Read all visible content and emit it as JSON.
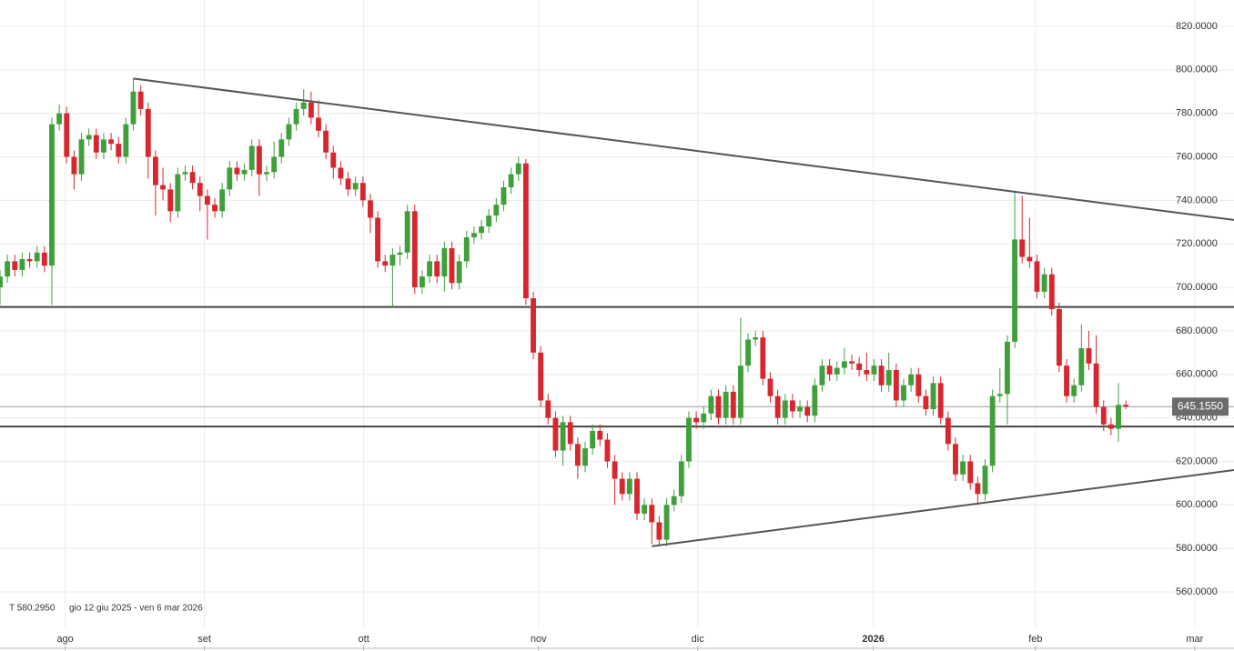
{
  "chart_data": {
    "type": "candlestick",
    "up_color": "#3f9f3a",
    "down_color": "#d7262e",
    "ylim": [
      543.7,
      832.1
    ],
    "yticks": [
      {
        "value": 560,
        "label": "560.0000"
      },
      {
        "value": 580,
        "label": "580.0000"
      },
      {
        "value": 600,
        "label": "600.0000"
      },
      {
        "value": 620,
        "label": "620.0000"
      },
      {
        "value": 640,
        "label": "640.0000"
      },
      {
        "value": 660,
        "label": "660.0000"
      },
      {
        "value": 680,
        "label": "680.0000"
      },
      {
        "value": 700,
        "label": "700.0000"
      },
      {
        "value": 720,
        "label": "720.0000"
      },
      {
        "value": 740,
        "label": "740.0000"
      },
      {
        "value": 760,
        "label": "760.0000"
      },
      {
        "value": 780,
        "label": "780.0000"
      },
      {
        "value": 800,
        "label": "800.0000"
      },
      {
        "value": 820,
        "label": "820.0000"
      }
    ],
    "xlim": [
      0,
      166.6
    ],
    "xticks": [
      {
        "value": 8.8,
        "label": "ago"
      },
      {
        "value": 27.6,
        "label": "set"
      },
      {
        "value": 49.1,
        "label": "ott"
      },
      {
        "value": 72.7,
        "label": "nov"
      },
      {
        "value": 94.2,
        "label": "dic"
      },
      {
        "value": 117.9,
        "label": "2026"
      },
      {
        "value": 139.8,
        "label": "feb"
      },
      {
        "value": 161.3,
        "label": "mar"
      }
    ],
    "grid": true,
    "open": [
      700,
      705,
      712,
      708,
      713,
      712,
      716,
      710,
      775,
      780,
      760,
      752,
      768,
      770,
      762,
      768,
      766,
      760,
      775,
      790,
      782,
      760,
      747,
      745,
      735,
      752,
      753,
      748,
      742,
      738,
      735,
      745,
      755,
      752,
      754,
      765,
      752,
      753,
      760,
      768,
      775,
      782,
      785,
      778,
      772,
      762,
      755,
      750,
      745,
      748,
      740,
      732,
      712,
      710,
      715,
      716,
      735,
      700,
      705,
      712,
      705,
      718,
      702,
      712,
      723,
      725,
      728,
      733,
      738,
      746,
      752,
      757,
      695,
      670,
      648,
      640,
      625,
      638,
      628,
      618,
      626,
      634,
      630,
      620,
      612,
      605,
      612,
      596,
      600,
      592,
      584,
      600,
      604,
      620,
      640,
      638,
      642,
      650,
      640,
      652,
      640,
      664,
      676,
      677,
      658,
      650,
      640,
      648,
      643,
      645,
      641,
      655,
      664,
      660,
      663,
      666,
      665,
      662,
      660,
      664,
      655,
      662,
      648,
      655,
      660,
      650,
      644,
      656,
      640,
      628,
      614,
      620,
      610,
      605,
      618,
      650,
      651,
      675,
      722,
      714,
      712,
      698,
      706,
      690,
      664,
      650,
      655,
      672,
      665,
      645,
      637,
      635,
      646
    ],
    "high": [
      708,
      715,
      715,
      716,
      716,
      719,
      719,
      778,
      784,
      783,
      763,
      771,
      773,
      773,
      771,
      771,
      769,
      778,
      796,
      793,
      785,
      763,
      755,
      748,
      755,
      756,
      756,
      751,
      745,
      741,
      748,
      758,
      758,
      757,
      768,
      768,
      756,
      767,
      771,
      778,
      785,
      791,
      790,
      786,
      775,
      765,
      758,
      753,
      751,
      751,
      743,
      735,
      715,
      718,
      719,
      738,
      738,
      708,
      715,
      715,
      721,
      721,
      715,
      726,
      728,
      731,
      736,
      741,
      749,
      755,
      760,
      759,
      698,
      673,
      651,
      643,
      641,
      641,
      631,
      629,
      637,
      637,
      633,
      623,
      615,
      615,
      615,
      603,
      603,
      595,
      603,
      607,
      623,
      643,
      643,
      645,
      653,
      653,
      655,
      655,
      686,
      679,
      680,
      680,
      661,
      653,
      651,
      651,
      648,
      648,
      658,
      667,
      667,
      666,
      672,
      669,
      668,
      670,
      667,
      667,
      670,
      665,
      658,
      663,
      663,
      653,
      659,
      659,
      643,
      631,
      623,
      623,
      613,
      621,
      653,
      663,
      678,
      744,
      742,
      732,
      715,
      709,
      709,
      693,
      667,
      658,
      683,
      680,
      678,
      648,
      640,
      656,
      648
    ],
    "low": [
      692,
      702,
      705,
      705,
      709,
      709,
      707,
      692,
      772,
      757,
      745,
      749,
      765,
      759,
      759,
      763,
      757,
      757,
      772,
      779,
      750,
      733,
      740,
      730,
      732,
      749,
      745,
      735,
      722,
      732,
      732,
      742,
      749,
      749,
      751,
      742,
      749,
      750,
      757,
      765,
      772,
      779,
      775,
      769,
      759,
      750,
      747,
      742,
      742,
      737,
      725,
      709,
      707,
      691,
      710,
      713,
      697,
      697,
      702,
      702,
      698,
      699,
      699,
      709,
      720,
      722,
      725,
      730,
      735,
      743,
      749,
      692,
      667,
      645,
      637,
      622,
      618,
      625,
      612,
      615,
      623,
      627,
      617,
      600,
      602,
      602,
      593,
      593,
      582,
      581,
      581,
      597,
      601,
      617,
      635,
      635,
      639,
      637,
      637,
      637,
      637,
      661,
      673,
      655,
      647,
      637,
      637,
      640,
      640,
      638,
      638,
      652,
      657,
      657,
      660,
      662,
      659,
      657,
      657,
      652,
      652,
      645,
      645,
      652,
      647,
      641,
      641,
      637,
      625,
      611,
      611,
      607,
      600,
      602,
      615,
      647,
      637,
      672,
      711,
      709,
      695,
      695,
      687,
      661,
      647,
      647,
      652,
      662,
      642,
      634,
      632,
      629,
      644
    ],
    "close": [
      705,
      712,
      708,
      713,
      712,
      716,
      710,
      775,
      780,
      760,
      752,
      768,
      770,
      762,
      768,
      766,
      760,
      775,
      790,
      782,
      760,
      747,
      745,
      735,
      752,
      753,
      748,
      742,
      738,
      735,
      745,
      755,
      752,
      754,
      765,
      752,
      753,
      760,
      768,
      775,
      782,
      785,
      778,
      772,
      762,
      755,
      750,
      745,
      748,
      740,
      732,
      712,
      710,
      715,
      716,
      735,
      700,
      705,
      712,
      705,
      718,
      702,
      712,
      723,
      725,
      728,
      733,
      738,
      746,
      752,
      757,
      695,
      670,
      648,
      640,
      625,
      638,
      628,
      618,
      626,
      634,
      630,
      620,
      612,
      605,
      612,
      596,
      600,
      592,
      584,
      600,
      604,
      620,
      640,
      638,
      642,
      650,
      640,
      652,
      640,
      664,
      676,
      677,
      658,
      650,
      640,
      648,
      643,
      645,
      641,
      655,
      664,
      660,
      663,
      666,
      665,
      662,
      660,
      664,
      655,
      662,
      648,
      655,
      660,
      650,
      644,
      656,
      640,
      628,
      614,
      620,
      610,
      605,
      618,
      650,
      651,
      675,
      722,
      714,
      712,
      698,
      706,
      690,
      664,
      650,
      655,
      672,
      665,
      645,
      637,
      635,
      646,
      645.155
    ],
    "hlines": [
      691,
      636
    ],
    "trendlines": [
      {
        "x": [
          18,
          166.6
        ],
        "y": [
          796,
          731
        ]
      },
      {
        "x": [
          88,
          166.6
        ],
        "y": [
          581,
          616
        ]
      }
    ],
    "last_price": {
      "value": 645.155,
      "label": "645.1550"
    },
    "footer_text": [
      "T 580.2950",
      "gio 12 giu 2025 - ven 6 mar 2026"
    ]
  }
}
